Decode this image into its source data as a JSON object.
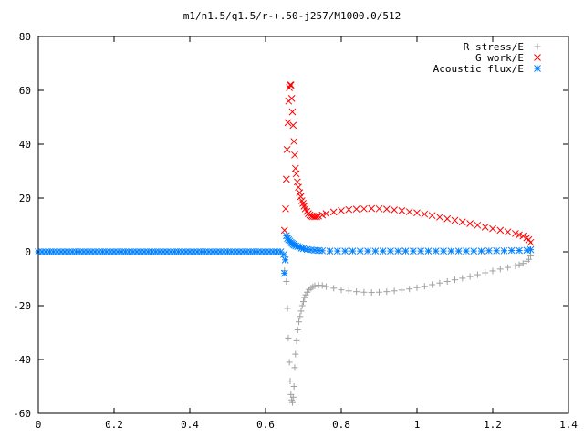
{
  "chart_data": {
    "type": "scatter",
    "title": "m1/n1.5/q1.5/r-+.50-j257/M1000.0/512",
    "xlabel": "",
    "ylabel": "",
    "xlim": [
      0,
      1.4
    ],
    "ylim": [
      -60,
      80
    ],
    "xticks": [
      0,
      0.2,
      0.4,
      0.6,
      0.8,
      1,
      1.2,
      1.4
    ],
    "yticks": [
      -60,
      -40,
      -20,
      0,
      20,
      40,
      60,
      80
    ],
    "xtick_labels": [
      "0",
      "0.2",
      "0.4",
      "0.6",
      "0.8",
      "1",
      "1.2",
      "1.4"
    ],
    "ytick_labels": [
      "-60",
      "-40",
      "-20",
      "0",
      "20",
      "40",
      "60",
      "80"
    ],
    "grid": false,
    "legend_position": "top-right",
    "series": [
      {
        "name": "R stress/E",
        "marker": "plus",
        "color": "#a0a0a0",
        "points": [
          [
            0.0,
            0
          ],
          [
            0.1,
            0
          ],
          [
            0.2,
            0
          ],
          [
            0.3,
            0
          ],
          [
            0.4,
            0
          ],
          [
            0.5,
            0
          ],
          [
            0.6,
            0
          ],
          [
            0.63,
            0
          ],
          [
            0.65,
            -7
          ],
          [
            0.655,
            -11
          ],
          [
            0.658,
            -21
          ],
          [
            0.66,
            -32
          ],
          [
            0.663,
            -41
          ],
          [
            0.665,
            -48
          ],
          [
            0.667,
            -53
          ],
          [
            0.669,
            -55
          ],
          [
            0.671,
            -56
          ],
          [
            0.673,
            -54
          ],
          [
            0.675,
            -50
          ],
          [
            0.677,
            -43
          ],
          [
            0.679,
            -38
          ],
          [
            0.682,
            -33
          ],
          [
            0.685,
            -29
          ],
          [
            0.688,
            -26
          ],
          [
            0.691,
            -24
          ],
          [
            0.694,
            -22
          ],
          [
            0.697,
            -20
          ],
          [
            0.7,
            -18.5
          ],
          [
            0.703,
            -17
          ],
          [
            0.706,
            -16
          ],
          [
            0.71,
            -15
          ],
          [
            0.715,
            -14
          ],
          [
            0.72,
            -13.5
          ],
          [
            0.725,
            -13
          ],
          [
            0.73,
            -12.6
          ],
          [
            0.74,
            -12.4
          ],
          [
            0.75,
            -12.5
          ],
          [
            0.76,
            -12.9
          ],
          [
            0.78,
            -13.5
          ],
          [
            0.8,
            -14.1
          ],
          [
            0.82,
            -14.5
          ],
          [
            0.84,
            -14.8
          ],
          [
            0.86,
            -15
          ],
          [
            0.88,
            -15.1
          ],
          [
            0.9,
            -15
          ],
          [
            0.92,
            -14.8
          ],
          [
            0.94,
            -14.5
          ],
          [
            0.96,
            -14.2
          ],
          [
            0.98,
            -13.8
          ],
          [
            1.0,
            -13.3
          ],
          [
            1.02,
            -12.8
          ],
          [
            1.04,
            -12.2
          ],
          [
            1.06,
            -11.6
          ],
          [
            1.08,
            -11
          ],
          [
            1.1,
            -10.4
          ],
          [
            1.12,
            -9.8
          ],
          [
            1.14,
            -9.2
          ],
          [
            1.16,
            -8.5
          ],
          [
            1.18,
            -7.8
          ],
          [
            1.2,
            -7.1
          ],
          [
            1.22,
            -6.4
          ],
          [
            1.24,
            -5.8
          ],
          [
            1.26,
            -5.2
          ],
          [
            1.27,
            -4.8
          ],
          [
            1.28,
            -4.3
          ],
          [
            1.29,
            -3.5
          ],
          [
            1.295,
            -2.8
          ],
          [
            1.3,
            -1.5
          ]
        ]
      },
      {
        "name": "G work/E",
        "marker": "cross",
        "color": "#ff0000",
        "points": [
          [
            0.65,
            8
          ],
          [
            0.653,
            16
          ],
          [
            0.655,
            27
          ],
          [
            0.657,
            38
          ],
          [
            0.659,
            48
          ],
          [
            0.661,
            56
          ],
          [
            0.663,
            61
          ],
          [
            0.665,
            62
          ],
          [
            0.667,
            62
          ],
          [
            0.669,
            57
          ],
          [
            0.671,
            52
          ],
          [
            0.673,
            47
          ],
          [
            0.675,
            41
          ],
          [
            0.677,
            36
          ],
          [
            0.679,
            31
          ],
          [
            0.681,
            29
          ],
          [
            0.684,
            26
          ],
          [
            0.687,
            24
          ],
          [
            0.69,
            22
          ],
          [
            0.693,
            20.5
          ],
          [
            0.696,
            19
          ],
          [
            0.699,
            18
          ],
          [
            0.702,
            17
          ],
          [
            0.705,
            16
          ],
          [
            0.709,
            15
          ],
          [
            0.713,
            14.2
          ],
          [
            0.717,
            13.7
          ],
          [
            0.721,
            13.3
          ],
          [
            0.725,
            13.1
          ],
          [
            0.73,
            13
          ],
          [
            0.735,
            13.1
          ],
          [
            0.74,
            13.3
          ],
          [
            0.75,
            13.7
          ],
          [
            0.76,
            14.2
          ],
          [
            0.78,
            14.8
          ],
          [
            0.8,
            15.3
          ],
          [
            0.82,
            15.7
          ],
          [
            0.84,
            15.9
          ],
          [
            0.86,
            16
          ],
          [
            0.88,
            16.1
          ],
          [
            0.9,
            16
          ],
          [
            0.92,
            15.9
          ],
          [
            0.94,
            15.6
          ],
          [
            0.96,
            15.3
          ],
          [
            0.98,
            14.9
          ],
          [
            1.0,
            14.5
          ],
          [
            1.02,
            14
          ],
          [
            1.04,
            13.5
          ],
          [
            1.06,
            12.9
          ],
          [
            1.08,
            12.3
          ],
          [
            1.1,
            11.7
          ],
          [
            1.12,
            11.1
          ],
          [
            1.14,
            10.5
          ],
          [
            1.16,
            9.9
          ],
          [
            1.18,
            9.2
          ],
          [
            1.2,
            8.6
          ],
          [
            1.22,
            8
          ],
          [
            1.24,
            7.4
          ],
          [
            1.26,
            6.8
          ],
          [
            1.27,
            6.3
          ],
          [
            1.28,
            5.9
          ],
          [
            1.29,
            5.2
          ],
          [
            1.295,
            4.5
          ],
          [
            1.3,
            3.5
          ]
        ]
      },
      {
        "name": "Acoustic flux/E",
        "marker": "star",
        "color": "#0080ff",
        "points": [
          [
            0.0,
            0
          ],
          [
            0.01,
            0
          ],
          [
            0.02,
            0
          ],
          [
            0.03,
            0
          ],
          [
            0.04,
            0
          ],
          [
            0.05,
            0
          ],
          [
            0.06,
            0
          ],
          [
            0.07,
            0
          ],
          [
            0.08,
            0
          ],
          [
            0.09,
            0
          ],
          [
            0.1,
            0
          ],
          [
            0.11,
            0
          ],
          [
            0.12,
            0
          ],
          [
            0.13,
            0
          ],
          [
            0.14,
            0
          ],
          [
            0.15,
            0
          ],
          [
            0.16,
            0
          ],
          [
            0.17,
            0
          ],
          [
            0.18,
            0
          ],
          [
            0.19,
            0
          ],
          [
            0.2,
            0
          ],
          [
            0.21,
            0
          ],
          [
            0.22,
            0
          ],
          [
            0.23,
            0
          ],
          [
            0.24,
            0
          ],
          [
            0.25,
            0
          ],
          [
            0.26,
            0
          ],
          [
            0.27,
            0
          ],
          [
            0.28,
            0
          ],
          [
            0.29,
            0
          ],
          [
            0.3,
            0
          ],
          [
            0.31,
            0
          ],
          [
            0.32,
            0
          ],
          [
            0.33,
            0
          ],
          [
            0.34,
            0
          ],
          [
            0.35,
            0
          ],
          [
            0.36,
            0
          ],
          [
            0.37,
            0
          ],
          [
            0.38,
            0
          ],
          [
            0.39,
            0
          ],
          [
            0.4,
            0
          ],
          [
            0.41,
            0
          ],
          [
            0.42,
            0
          ],
          [
            0.43,
            0
          ],
          [
            0.44,
            0
          ],
          [
            0.45,
            0
          ],
          [
            0.46,
            0
          ],
          [
            0.47,
            0
          ],
          [
            0.48,
            0
          ],
          [
            0.49,
            0
          ],
          [
            0.5,
            0
          ],
          [
            0.51,
            0
          ],
          [
            0.52,
            0
          ],
          [
            0.53,
            0
          ],
          [
            0.54,
            0
          ],
          [
            0.55,
            0
          ],
          [
            0.56,
            0
          ],
          [
            0.57,
            0
          ],
          [
            0.58,
            0
          ],
          [
            0.59,
            0
          ],
          [
            0.6,
            0
          ],
          [
            0.61,
            0
          ],
          [
            0.62,
            0
          ],
          [
            0.63,
            0
          ],
          [
            0.64,
            0
          ],
          [
            0.648,
            -1
          ],
          [
            0.65,
            -8
          ],
          [
            0.652,
            -3
          ],
          [
            0.655,
            6
          ],
          [
            0.658,
            5
          ],
          [
            0.661,
            4.5
          ],
          [
            0.664,
            4
          ],
          [
            0.667,
            3.5
          ],
          [
            0.67,
            3.2
          ],
          [
            0.673,
            2.8
          ],
          [
            0.676,
            2.5
          ],
          [
            0.68,
            2.2
          ],
          [
            0.685,
            2
          ],
          [
            0.69,
            1.7
          ],
          [
            0.695,
            1.4
          ],
          [
            0.7,
            1.2
          ],
          [
            0.71,
            0.9
          ],
          [
            0.72,
            0.7
          ],
          [
            0.73,
            0.6
          ],
          [
            0.74,
            0.5
          ],
          [
            0.75,
            0.4
          ],
          [
            0.77,
            0.3
          ],
          [
            0.79,
            0.3
          ],
          [
            0.81,
            0.3
          ],
          [
            0.83,
            0.3
          ],
          [
            0.85,
            0.3
          ],
          [
            0.87,
            0.3
          ],
          [
            0.89,
            0.3
          ],
          [
            0.91,
            0.3
          ],
          [
            0.93,
            0.3
          ],
          [
            0.95,
            0.3
          ],
          [
            0.97,
            0.3
          ],
          [
            0.99,
            0.3
          ],
          [
            1.01,
            0.3
          ],
          [
            1.03,
            0.3
          ],
          [
            1.05,
            0.3
          ],
          [
            1.07,
            0.3
          ],
          [
            1.09,
            0.3
          ],
          [
            1.11,
            0.3
          ],
          [
            1.13,
            0.3
          ],
          [
            1.15,
            0.3
          ],
          [
            1.17,
            0.3
          ],
          [
            1.19,
            0.4
          ],
          [
            1.21,
            0.4
          ],
          [
            1.23,
            0.4
          ],
          [
            1.25,
            0.5
          ],
          [
            1.27,
            0.5
          ],
          [
            1.29,
            0.6
          ],
          [
            1.3,
            0.8
          ]
        ]
      }
    ]
  }
}
